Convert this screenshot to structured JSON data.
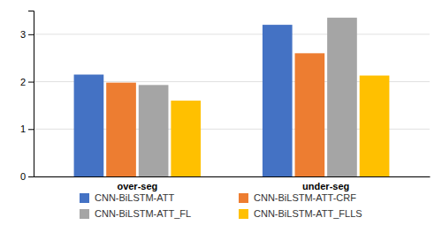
{
  "chart_data": {
    "type": "bar",
    "categories": [
      "over-seg",
      "under-seg"
    ],
    "series": [
      {
        "name": "CNN-BiLSTM-ATT",
        "color": "#4472C4",
        "values": [
          2.15,
          3.2
        ]
      },
      {
        "name": "CNN-BiLSTM-ATT-CRF",
        "color": "#ED7D31",
        "values": [
          1.98,
          2.6
        ]
      },
      {
        "name": "CNN-BiLSTM-ATT_FL",
        "color": "#A5A5A5",
        "values": [
          1.93,
          3.35
        ]
      },
      {
        "name": "CNN-BiLSTM-ATT_FLLS",
        "color": "#FFC000",
        "values": [
          1.6,
          2.13
        ]
      }
    ],
    "ylim": [
      0,
      3.5
    ],
    "yticks": [
      0,
      1,
      2,
      3
    ],
    "grid": true,
    "legend": "bottom"
  }
}
